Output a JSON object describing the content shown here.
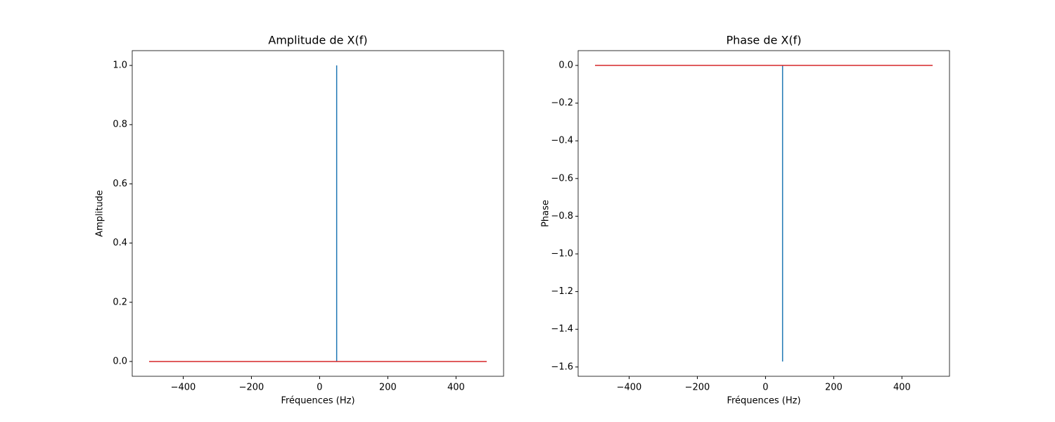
{
  "chart_data": [
    {
      "type": "stem",
      "title": "Amplitude de X(f)",
      "x_label": "Fréquences (Hz)",
      "y_label": "Amplitude",
      "x": [
        -500,
        50,
        490
      ],
      "values": [
        0,
        1.0,
        0
      ],
      "color": "#1f77b4",
      "baseline_color": "#d62728",
      "xlim": [
        -549.5,
        539.5
      ],
      "ylim": [
        -0.05,
        1.05
      ],
      "xticks": [
        {
          "value": -400,
          "label": "−400"
        },
        {
          "value": -200,
          "label": "−200"
        },
        0,
        200,
        400
      ],
      "yticks": [
        {
          "value": 0,
          "label": "0.0"
        },
        0.2,
        0.4,
        0.6,
        0.8,
        {
          "value": 1,
          "label": "1.0"
        }
      ]
    },
    {
      "type": "stem",
      "title": "Phase de X(f)",
      "x_label": "Fréquences (Hz)",
      "y_label": "Phase",
      "x": [
        -500,
        50,
        490
      ],
      "values": [
        0,
        -1.5708,
        0
      ],
      "color": "#1f77b4",
      "baseline_color": "#d62728",
      "xlim": [
        -549.5,
        539.5
      ],
      "ylim": [
        -1.6493,
        0.0785
      ],
      "xticks": [
        {
          "value": -400,
          "label": "−400"
        },
        {
          "value": -200,
          "label": "−200"
        },
        0,
        200,
        400
      ],
      "yticks": [
        {
          "value": 0,
          "label": "0.0"
        },
        {
          "value": -0.2,
          "label": "−0.2"
        },
        {
          "value": -0.4,
          "label": "−0.4"
        },
        {
          "value": -0.6,
          "label": "−0.6"
        },
        {
          "value": -0.8,
          "label": "−0.8"
        },
        {
          "value": -1.0,
          "label": "−1.0"
        },
        {
          "value": -1.2,
          "label": "−1.2"
        },
        {
          "value": -1.4,
          "label": "−1.4"
        },
        {
          "value": -1.6,
          "label": "−1.6"
        }
      ]
    }
  ]
}
